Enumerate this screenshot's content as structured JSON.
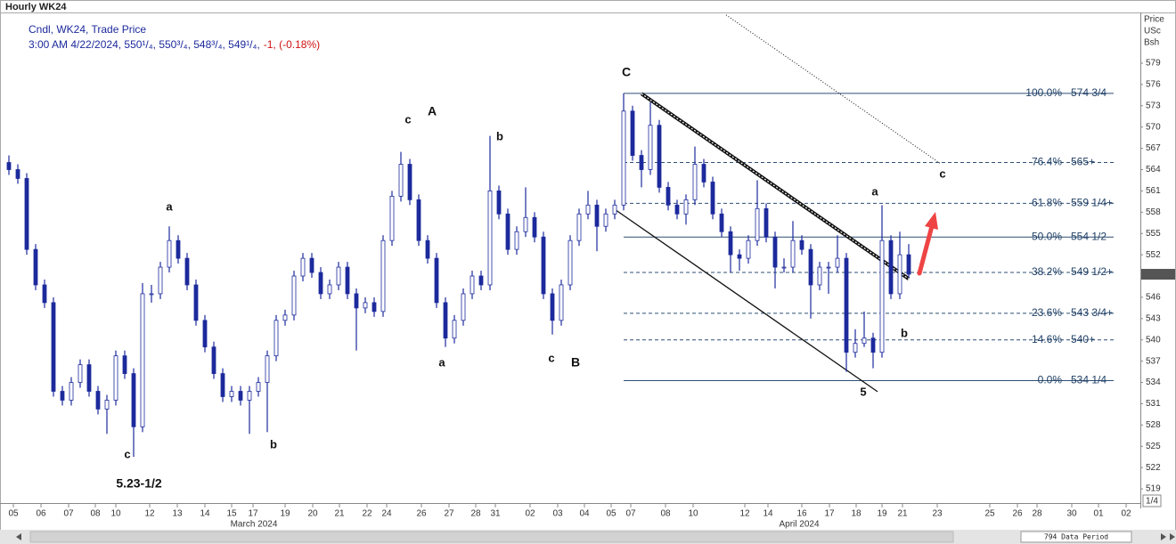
{
  "chart_data": {
    "type": "candlestick",
    "title": "Hourly WK24",
    "legend_line1": "Cndl, WK24, Trade Price",
    "legend_line2": "3:00 AM 4/22/2024, 550¹/₄, 550³/₄, 548³/₄, 549¹/₄,",
    "legend_change": "-1, (-0.18%)",
    "axis_header": [
      "Price",
      "USc",
      "Bsh"
    ],
    "color": "#1c2a9c",
    "ylim": [
      517,
      586.15
    ],
    "yticks": [
      519,
      522,
      525,
      528,
      531,
      534,
      537,
      540,
      543,
      546,
      549,
      552,
      555,
      558,
      561,
      564,
      567,
      570,
      573,
      576,
      579
    ],
    "xlim": [
      0,
      127.5
    ],
    "xticks": [
      {
        "value": 1.0,
        "label": "05"
      },
      {
        "value": 4.1,
        "label": "06"
      },
      {
        "value": 7.2,
        "label": "07"
      },
      {
        "value": 10.2,
        "label": "08"
      },
      {
        "value": 12.5,
        "label": "10"
      },
      {
        "value": 16.3,
        "label": "12"
      },
      {
        "value": 19.4,
        "label": "13"
      },
      {
        "value": 22.5,
        "label": "14"
      },
      {
        "value": 25.5,
        "label": "15"
      },
      {
        "value": 27.9,
        "label": "17"
      },
      {
        "value": 31.5,
        "label": "19"
      },
      {
        "value": 34.6,
        "label": "20"
      },
      {
        "value": 37.6,
        "label": "21"
      },
      {
        "value": 40.7,
        "label": "22"
      },
      {
        "value": 42.9,
        "label": "24"
      },
      {
        "value": 46.8,
        "label": "26"
      },
      {
        "value": 49.9,
        "label": "27"
      },
      {
        "value": 52.9,
        "label": "28"
      },
      {
        "value": 55.1,
        "label": "31"
      },
      {
        "value": 59.0,
        "label": "02"
      },
      {
        "value": 62.1,
        "label": "03"
      },
      {
        "value": 65.1,
        "label": "04"
      },
      {
        "value": 68.1,
        "label": "05"
      },
      {
        "value": 70.3,
        "label": "07"
      },
      {
        "value": 74.2,
        "label": "08"
      },
      {
        "value": 77.3,
        "label": "10"
      },
      {
        "value": 83.1,
        "label": "12"
      },
      {
        "value": 85.7,
        "label": "14"
      },
      {
        "value": 89.5,
        "label": "16"
      },
      {
        "value": 92.6,
        "label": "17"
      },
      {
        "value": 95.6,
        "label": "18"
      },
      {
        "value": 98.5,
        "label": "19"
      },
      {
        "value": 100.8,
        "label": "21"
      },
      {
        "value": 104.7,
        "label": "23"
      },
      {
        "value": 110.6,
        "label": "25"
      },
      {
        "value": 113.7,
        "label": "26"
      },
      {
        "value": 115.9,
        "label": "28"
      },
      {
        "value": 119.8,
        "label": "30"
      },
      {
        "value": 122.8,
        "label": "01"
      },
      {
        "value": 125.9,
        "label": "02"
      }
    ],
    "months": [
      {
        "value": 28.0,
        "label": "March 2024"
      },
      {
        "value": 89.2,
        "label": "April 2024"
      }
    ],
    "last": 549.25,
    "ohlc": [
      [
        565,
        566,
        563.25,
        564
      ],
      [
        564,
        564.75,
        562,
        562.75
      ],
      [
        562.75,
        563.5,
        552,
        552.75
      ],
      [
        552.75,
        553.5,
        547,
        547.75
      ],
      [
        547.75,
        548.5,
        544.5,
        545.25
      ],
      [
        545.25,
        546,
        532,
        532.75
      ],
      [
        532.75,
        533.5,
        530.75,
        531.5
      ],
      [
        531.5,
        534.75,
        530.75,
        534
      ],
      [
        534,
        537.25,
        533.25,
        536.5
      ],
      [
        536.5,
        537.25,
        532,
        532.75
      ],
      [
        532.75,
        533.5,
        529.5,
        530.25
      ],
      [
        530.25,
        532.25,
        526.75,
        531.5
      ],
      [
        531.5,
        538.5,
        530.75,
        537.75
      ],
      [
        537.75,
        538.5,
        534.5,
        535.25
      ],
      [
        535.25,
        536,
        523.5,
        527.75
      ],
      [
        527.75,
        548,
        527,
        546.5
      ],
      [
        546.5,
        547.75,
        545.25,
        546.5
      ],
      [
        546.5,
        551,
        545.75,
        550.25
      ],
      [
        550.25,
        556,
        549.5,
        554
      ],
      [
        554,
        554.75,
        550.75,
        551.5
      ],
      [
        551.5,
        552.25,
        547,
        547.75
      ],
      [
        547.75,
        548.5,
        542,
        542.75
      ],
      [
        542.75,
        543.5,
        538.25,
        539
      ],
      [
        539,
        539.75,
        534.5,
        535.25
      ],
      [
        535.25,
        536,
        531.25,
        532
      ],
      [
        532,
        533.5,
        531.25,
        532.75
      ],
      [
        532.75,
        533.5,
        530.75,
        531.5
      ],
      [
        531.5,
        533.5,
        526.75,
        532.75
      ],
      [
        532.75,
        534.75,
        532,
        534
      ],
      [
        534,
        538.5,
        527,
        537.75
      ],
      [
        537.75,
        543.5,
        537,
        542.75
      ],
      [
        542.75,
        544.25,
        542,
        543.5
      ],
      [
        543.5,
        549.75,
        542.75,
        549
      ],
      [
        549,
        552.25,
        548.25,
        551.5
      ],
      [
        551.5,
        552.25,
        548.75,
        549.5
      ],
      [
        549.5,
        550.25,
        545.75,
        546.5
      ],
      [
        546.5,
        548.5,
        545.75,
        547.75
      ],
      [
        547.75,
        551,
        547,
        550.25
      ],
      [
        550.25,
        551,
        545.75,
        546.5
      ],
      [
        546.5,
        547.25,
        538.5,
        544.5
      ],
      [
        544.5,
        546,
        543.75,
        545.25
      ],
      [
        545.25,
        546,
        543.25,
        544
      ],
      [
        544,
        554.75,
        543.25,
        554
      ],
      [
        554,
        561,
        553.25,
        560.25
      ],
      [
        560.25,
        566.5,
        559.5,
        564.75
      ],
      [
        564.75,
        565.5,
        559,
        559.75
      ],
      [
        559.75,
        560.5,
        553.25,
        554
      ],
      [
        554,
        554.75,
        550.75,
        551.5
      ],
      [
        551.5,
        552.25,
        544.5,
        545.25
      ],
      [
        545.25,
        546,
        539,
        540.25
      ],
      [
        540.25,
        543.5,
        539.5,
        542.75
      ],
      [
        542.75,
        547.25,
        542,
        546.5
      ],
      [
        546.5,
        549.75,
        545.75,
        549
      ],
      [
        549,
        549.75,
        547,
        547.75
      ],
      [
        547.75,
        568.75,
        547,
        561
      ],
      [
        561,
        561.75,
        557,
        557.75
      ],
      [
        557.75,
        558.5,
        552,
        552.75
      ],
      [
        552.75,
        556,
        552,
        555.25
      ],
      [
        555.25,
        561.5,
        554.5,
        557.25
      ],
      [
        557.25,
        558,
        553.75,
        554.5
      ],
      [
        554.5,
        555.25,
        545.75,
        546.5
      ],
      [
        546.5,
        547.25,
        540.75,
        542.75
      ],
      [
        542.75,
        548.5,
        542,
        547.75
      ],
      [
        547.75,
        554.75,
        547,
        554
      ],
      [
        554,
        558.5,
        553.25,
        557.75
      ],
      [
        557.75,
        561,
        557,
        559
      ],
      [
        559,
        559.75,
        552.5,
        556
      ],
      [
        556,
        558.5,
        555.25,
        557.75
      ],
      [
        557.75,
        559.75,
        557,
        559
      ],
      [
        559,
        574.75,
        558.25,
        572.25
      ],
      [
        572.25,
        573,
        565.25,
        566
      ],
      [
        566,
        566.75,
        561.5,
        564
      ],
      [
        564,
        573.5,
        563.25,
        570.25
      ],
      [
        570.25,
        571,
        560.75,
        561.5
      ],
      [
        561.5,
        562.25,
        558.25,
        559
      ],
      [
        559,
        559.75,
        557,
        557.75
      ],
      [
        557.75,
        560.5,
        556.25,
        559.75
      ],
      [
        559.75,
        567.25,
        559,
        564.75
      ],
      [
        564.75,
        565.5,
        561.5,
        562.25
      ],
      [
        562.25,
        563,
        557,
        557.75
      ],
      [
        557.75,
        558.5,
        554.5,
        555.25
      ],
      [
        555.25,
        556,
        549.5,
        552
      ],
      [
        552,
        552.75,
        549.75,
        551.5
      ],
      [
        551.5,
        554.75,
        550.75,
        554
      ],
      [
        554,
        562.5,
        553.25,
        558.5
      ],
      [
        558.5,
        559.25,
        553.75,
        554.5
      ],
      [
        554.5,
        555.25,
        547.25,
        550.25
      ],
      [
        550.25,
        551.5,
        549.5,
        550.25
      ],
      [
        550.25,
        556.75,
        549.5,
        554
      ],
      [
        554,
        554.75,
        552,
        552.75
      ],
      [
        552.75,
        553.5,
        543,
        547.75
      ],
      [
        547.75,
        551,
        547,
        550.25
      ],
      [
        550.25,
        551,
        546.5,
        550.25
      ],
      [
        550.25,
        554.75,
        549.5,
        551.5
      ],
      [
        551.5,
        552.25,
        535.5,
        538.25
      ],
      [
        538.25,
        541.5,
        537.5,
        539.5
      ],
      [
        539.5,
        544,
        539,
        540.25
      ],
      [
        540.25,
        541,
        536,
        538.25
      ],
      [
        538.25,
        559,
        537.5,
        554
      ],
      [
        554,
        554.75,
        545.75,
        546.5
      ],
      [
        546.5,
        555.25,
        545.75,
        552
      ],
      [
        552,
        553.5,
        548.75,
        549.25
      ]
    ],
    "fib_levels": [
      {
        "value": 574.75,
        "pct": "100.0%",
        "label": "574 3/4",
        "dashed": false
      },
      {
        "value": 565,
        "pct": "76.4%",
        "label": "565+",
        "dashed": true
      },
      {
        "value": 559.25,
        "pct": "61.8%",
        "label": "559 1/4+",
        "dashed": true
      },
      {
        "value": 554.5,
        "pct": "50.0%",
        "label": "554 1/2",
        "dashed": false
      },
      {
        "value": 549.5,
        "pct": "38.2%",
        "label": "549 1/2+",
        "dashed": true
      },
      {
        "value": 543.75,
        "pct": "23.6%",
        "label": "543 3/4+",
        "dashed": true
      },
      {
        "value": 540,
        "pct": "14.6%",
        "label": "540+",
        "dashed": true
      },
      {
        "value": 534.25,
        "pct": "0.0%",
        "label": "534 1/4",
        "dashed": false
      }
    ],
    "trendlines": [
      {
        "x": [
          71.5,
          101.5
        ],
        "y": [
          574.7,
          548.6
        ],
        "style": "double"
      },
      {
        "x": [
          68.5,
          98
        ],
        "y": [
          558.4,
          532.7
        ],
        "style": "solid"
      },
      {
        "x": [
          81,
          105
        ],
        "y": [
          585.8,
          564.9
        ],
        "style": "dotted"
      }
    ],
    "wave_labels": [
      "c",
      "A",
      "b",
      "C",
      "a",
      "a",
      "c",
      "a",
      "c",
      "B",
      "b",
      "5",
      "b",
      "c",
      "5.23-1/2"
    ],
    "page_label": "1/4",
    "data_period": "794 Data Period"
  }
}
